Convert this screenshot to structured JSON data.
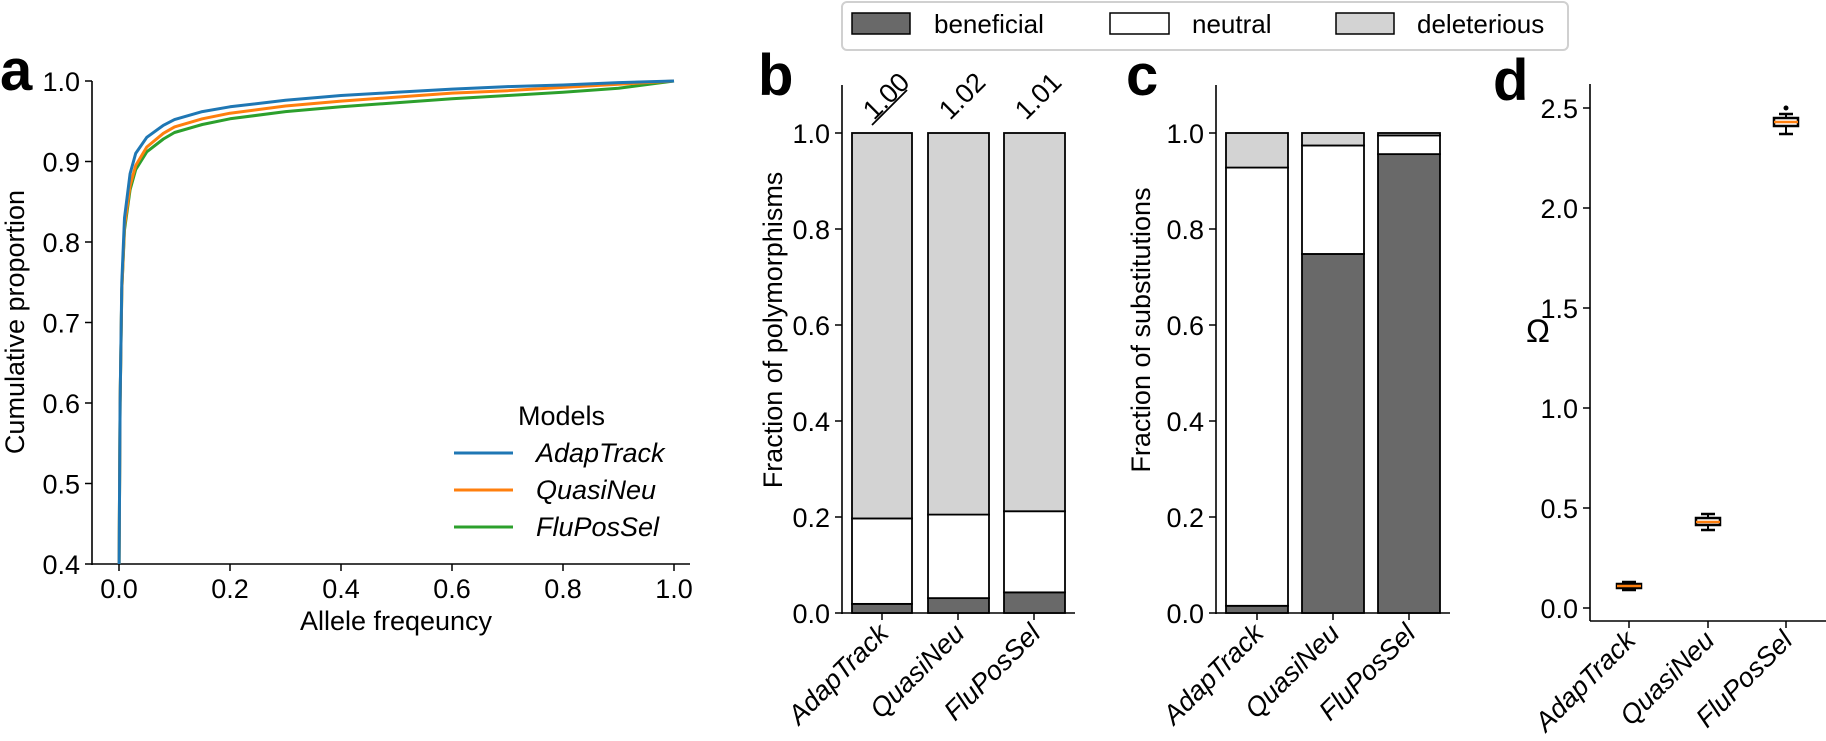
{
  "legend": {
    "items": [
      {
        "label": "beneficial",
        "color": "#696969"
      },
      {
        "label": "neutral",
        "color": "#ffffff"
      },
      {
        "label": "deleterious",
        "color": "#d3d3d3"
      }
    ]
  },
  "chart_data": [
    {
      "panel": "a",
      "type": "line",
      "xlabel": "Allele freqeuncy",
      "ylabel": "Cumulative proportion",
      "xlim": [
        0.0,
        1.0
      ],
      "ylim": [
        0.4,
        1.0
      ],
      "xticks": [
        "0.0",
        "0.2",
        "0.4",
        "0.6",
        "0.8",
        "1.0"
      ],
      "yticks": [
        "0.4",
        "0.5",
        "0.6",
        "0.7",
        "0.8",
        "0.9",
        "1.0"
      ],
      "legend_title": "Models",
      "legend_position": "lower-right",
      "x": [
        0.0,
        0.002,
        0.005,
        0.01,
        0.02,
        0.03,
        0.05,
        0.08,
        0.1,
        0.15,
        0.2,
        0.3,
        0.4,
        0.5,
        0.6,
        0.7,
        0.8,
        0.9,
        1.0
      ],
      "series": [
        {
          "name": "AdapTrack",
          "color": "#1f77b4",
          "values": [
            0.38,
            0.6,
            0.75,
            0.83,
            0.885,
            0.91,
            0.93,
            0.945,
            0.952,
            0.962,
            0.968,
            0.976,
            0.982,
            0.986,
            0.99,
            0.993,
            0.995,
            0.998,
            1.0
          ]
        },
        {
          "name": "QuasiNeu",
          "color": "#ff7f0e",
          "values": [
            0.38,
            0.6,
            0.74,
            0.82,
            0.87,
            0.895,
            0.918,
            0.935,
            0.943,
            0.953,
            0.96,
            0.969,
            0.975,
            0.98,
            0.985,
            0.988,
            0.992,
            0.996,
            1.0
          ]
        },
        {
          "name": "FluPosSel",
          "color": "#2ca02c",
          "values": [
            0.38,
            0.6,
            0.74,
            0.815,
            0.865,
            0.89,
            0.912,
            0.928,
            0.936,
            0.946,
            0.953,
            0.962,
            0.968,
            0.973,
            0.978,
            0.982,
            0.986,
            0.991,
            1.0
          ]
        }
      ]
    },
    {
      "panel": "b",
      "type": "bar",
      "stacked": true,
      "ylabel": "Fraction of polymorphisms",
      "ylim": [
        0.0,
        1.1
      ],
      "yticks": [
        "0.0",
        "0.2",
        "0.4",
        "0.6",
        "0.8",
        "1.0"
      ],
      "categories": [
        "AdapTrack",
        "QuasiNeu",
        "FluPosSel"
      ],
      "annotations": [
        {
          "text": "1.00",
          "underlined": true
        },
        {
          "text": "1.02",
          "underlined": false
        },
        {
          "text": "1.01",
          "underlined": false
        }
      ],
      "series": [
        {
          "name": "beneficial",
          "values": [
            0.019,
            0.031,
            0.043
          ]
        },
        {
          "name": "neutral",
          "values": [
            0.178,
            0.174,
            0.169
          ]
        },
        {
          "name": "deleterious",
          "values": [
            0.803,
            0.795,
            0.788
          ]
        }
      ]
    },
    {
      "panel": "c",
      "type": "bar",
      "stacked": true,
      "ylabel": "Fraction of substitutions",
      "ylim": [
        0.0,
        1.1
      ],
      "yticks": [
        "0.0",
        "0.2",
        "0.4",
        "0.6",
        "0.8",
        "1.0"
      ],
      "categories": [
        "AdapTrack",
        "QuasiNeu",
        "FluPosSel"
      ],
      "series": [
        {
          "name": "beneficial",
          "values": [
            0.015,
            0.748,
            0.956
          ]
        },
        {
          "name": "neutral",
          "values": [
            0.913,
            0.226,
            0.039
          ]
        },
        {
          "name": "deleterious",
          "values": [
            0.072,
            0.026,
            0.005
          ]
        }
      ]
    },
    {
      "panel": "d",
      "type": "box",
      "ylabel": "Ω",
      "ylim": [
        0.0,
        2.62
      ],
      "yticks": [
        "0.0",
        "0.5",
        "1.0",
        "1.5",
        "2.0",
        "2.5"
      ],
      "categories": [
        "AdapTrack",
        "QuasiNeu",
        "FluPosSel"
      ],
      "median_color": "#ff7f0e",
      "boxes": [
        {
          "whisker_low": 0.09,
          "q1": 0.1,
          "median": 0.11,
          "q3": 0.12,
          "whisker_high": 0.13,
          "fliers": []
        },
        {
          "whisker_low": 0.39,
          "q1": 0.415,
          "median": 0.43,
          "q3": 0.45,
          "whisker_high": 0.47,
          "fliers": []
        },
        {
          "whisker_low": 2.37,
          "q1": 2.41,
          "median": 2.43,
          "q3": 2.45,
          "whisker_high": 2.47,
          "fliers": [
            2.5
          ]
        }
      ]
    }
  ]
}
